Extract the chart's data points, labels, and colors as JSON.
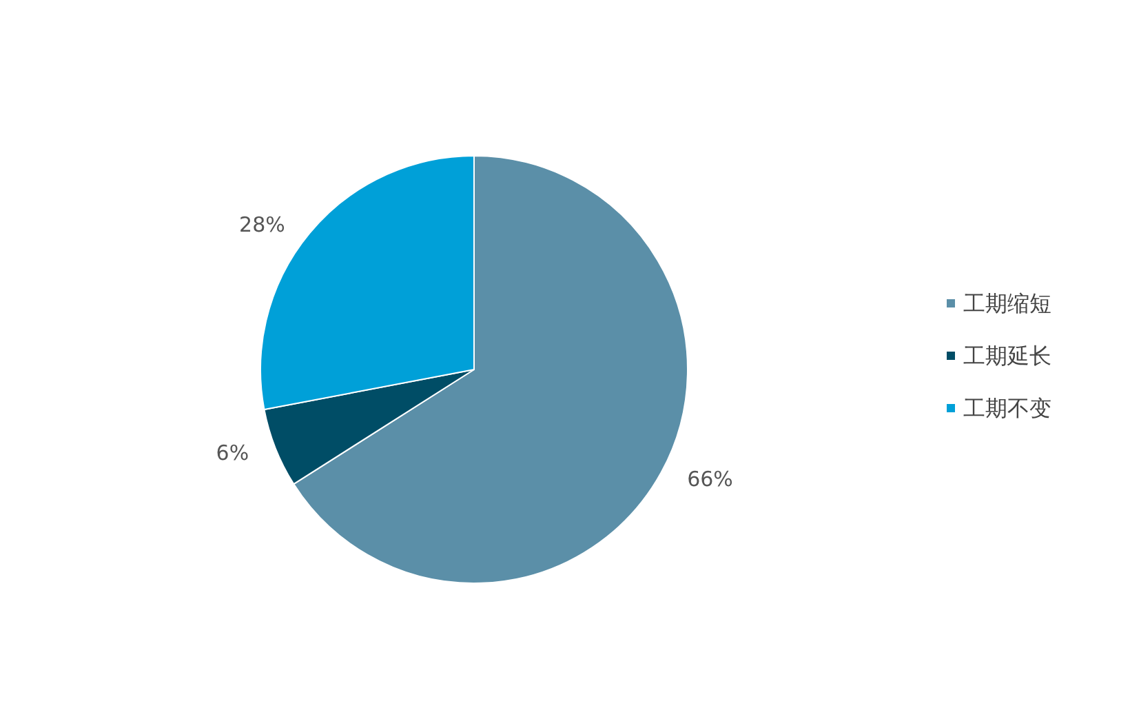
{
  "chart_data": {
    "type": "pie",
    "categories": [
      "工期缩短",
      "工期延长",
      "工期不变"
    ],
    "values": [
      66,
      6,
      28
    ],
    "colors": [
      "#5b8fa8",
      "#004d66",
      "#00a0d8"
    ],
    "value_labels": [
      "66%",
      "6%",
      "28%"
    ],
    "legend": "right"
  }
}
